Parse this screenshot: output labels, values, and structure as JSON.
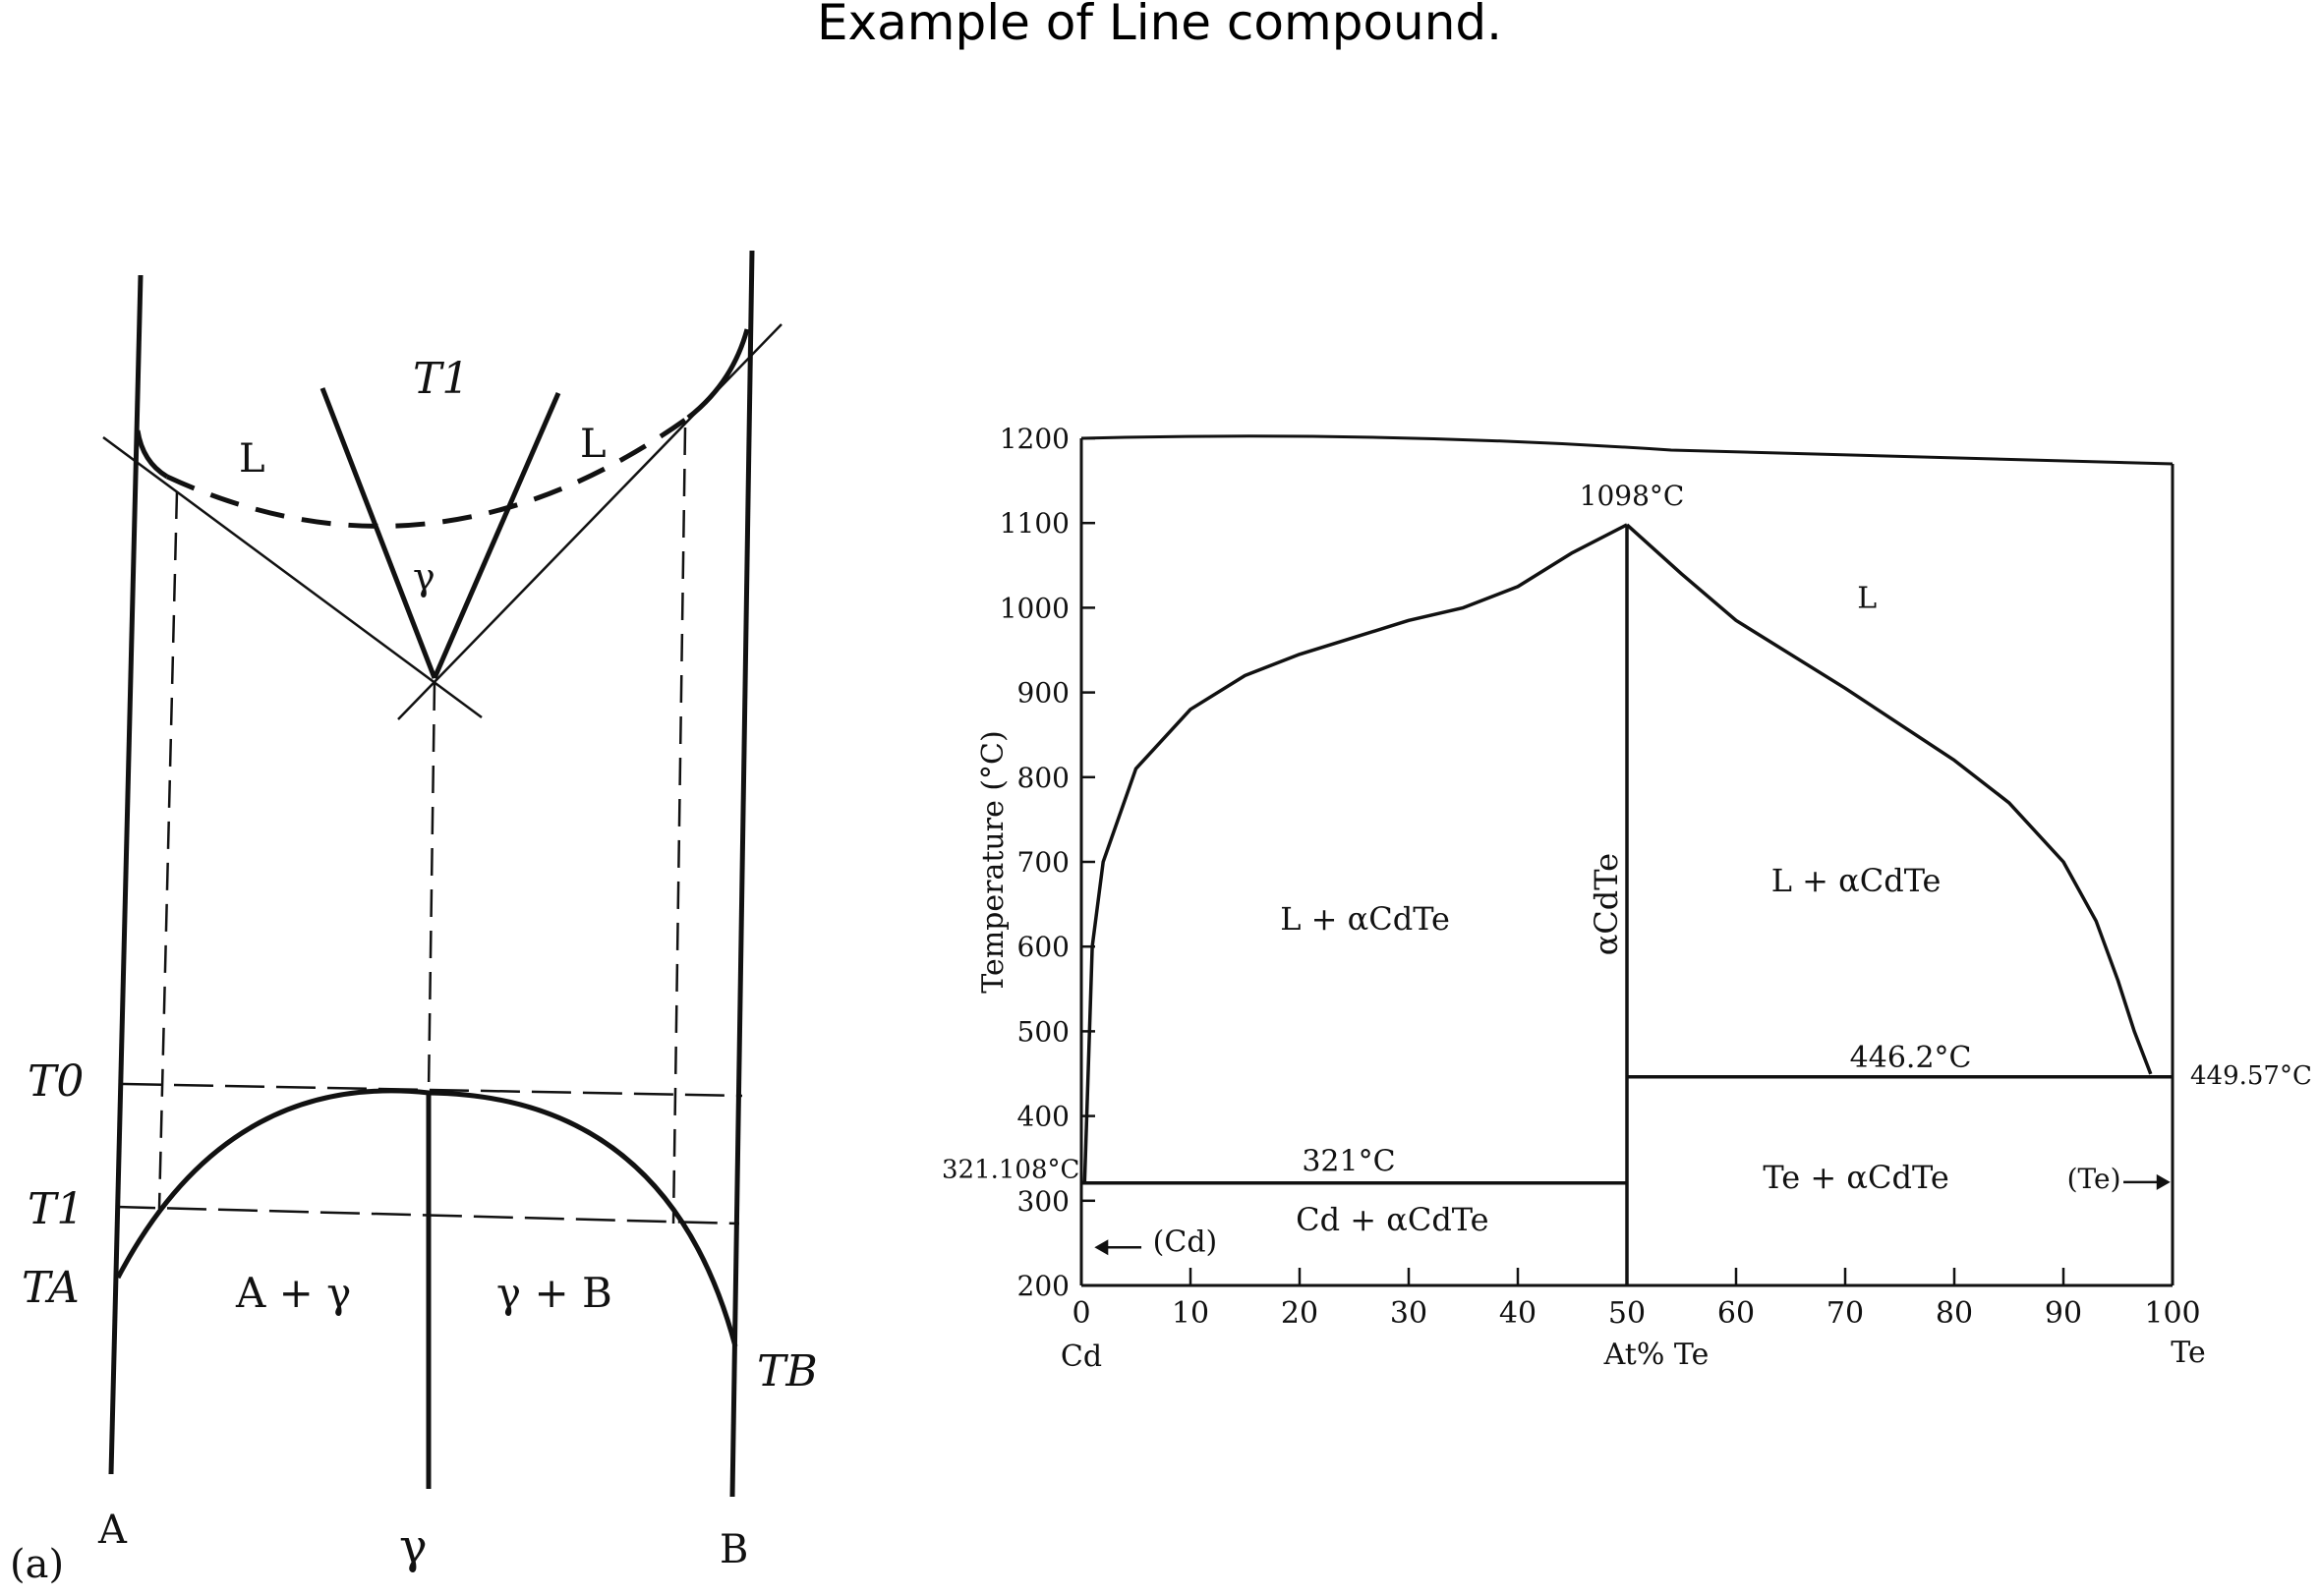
{
  "title": "Example of Line compound.",
  "left_diagram": {
    "panel_label": "(a)",
    "bottom_labels": {
      "a": "A",
      "gamma": "γ",
      "b": "B"
    },
    "temperature_labels": {
      "t0": "T0",
      "t1_upper": "T1",
      "t1_lower": "T1",
      "ta": "TA",
      "tb": "TB"
    },
    "region_labels": {
      "liquid_left": "L",
      "liquid_right": "L",
      "gamma_upper": "γ",
      "two_phase_left": "A + γ",
      "two_phase_right": "γ + B"
    }
  },
  "chart_data": {
    "type": "line",
    "x_axis": {
      "range": [
        0,
        100
      ],
      "ticks": [
        0,
        10,
        20,
        30,
        40,
        50,
        60,
        70,
        80,
        90,
        100
      ],
      "tick_labels": [
        "0",
        "10",
        "20",
        "30",
        "40",
        "50",
        "60",
        "70",
        "80",
        "90",
        "100"
      ],
      "label": "At% Te",
      "left_end_label": "Cd",
      "right_end_label": "Te"
    },
    "y_axis": {
      "range": [
        200,
        1200
      ],
      "ticks": [
        200,
        300,
        400,
        500,
        600,
        700,
        800,
        900,
        1000,
        1100,
        1200
      ],
      "tick_labels": [
        "200",
        "300",
        "400",
        "500",
        "600",
        "700",
        "800",
        "900",
        "1000",
        "1100",
        "1200"
      ],
      "label": "Temperature (°C)"
    },
    "series": [
      {
        "id": "liquidus_left",
        "points": [
          [
            0.3,
            321
          ],
          [
            1,
            600
          ],
          [
            2,
            700
          ],
          [
            5,
            810
          ],
          [
            10,
            880
          ],
          [
            15,
            920
          ],
          [
            20,
            945
          ],
          [
            25,
            965
          ],
          [
            30,
            985
          ],
          [
            35,
            1000
          ],
          [
            40,
            1025
          ],
          [
            45,
            1065
          ],
          [
            50,
            1098
          ]
        ]
      },
      {
        "id": "liquidus_right",
        "points": [
          [
            50,
            1098
          ],
          [
            55,
            1040
          ],
          [
            60,
            985
          ],
          [
            70,
            905
          ],
          [
            80,
            820
          ],
          [
            85,
            770
          ],
          [
            90,
            700
          ],
          [
            93,
            630
          ],
          [
            95,
            560
          ],
          [
            96.5,
            500
          ],
          [
            98,
            449.57
          ]
        ]
      },
      {
        "id": "eutectic_left",
        "points": [
          [
            0,
            321
          ],
          [
            50,
            321
          ]
        ]
      },
      {
        "id": "eutectic_right",
        "points": [
          [
            50,
            446.2
          ],
          [
            100,
            446.2
          ]
        ]
      },
      {
        "id": "compound_line",
        "points": [
          [
            50,
            200
          ],
          [
            50,
            1098
          ]
        ]
      }
    ],
    "annotations": {
      "melting_point": "1098°C",
      "cd_melting": "321.108°C",
      "eutectic_left": "321°C",
      "eutectic_right": "446.2°C",
      "te_melting": "449.57°C",
      "liquid": "L",
      "l_cdte_left": "L + αCdTe",
      "l_cdte_right": "L + αCdTe",
      "compound": "αCdTe",
      "cd_cdte": "Cd + αCdTe",
      "te_cdte": "Te + αCdTe",
      "cd_phase": "(Cd)",
      "te_phase": "(Te)"
    }
  }
}
